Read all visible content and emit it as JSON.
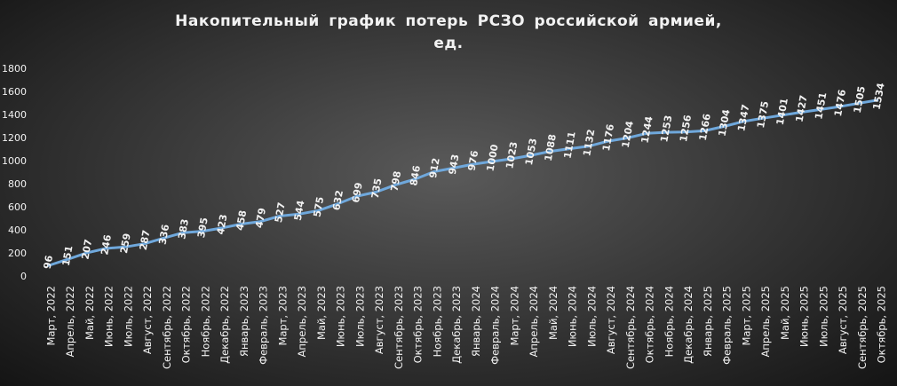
{
  "chart_data": {
    "type": "line",
    "title": "Накопительный график потерь РСЗО российской армией, ед.",
    "categories": [
      "Март, 2022",
      "Апрель, 2022",
      "Май, 2022",
      "Июнь, 2022",
      "Июль, 2022",
      "Август, 2022",
      "Сентябрь, 2022",
      "Октябрь, 2022",
      "Ноябрь, 2022",
      "Декабрь, 2022",
      "Январь, 2023",
      "Февраль, 2023",
      "Март, 2023",
      "Апрель, 2023",
      "Май, 2023",
      "Июнь, 2023",
      "Июль, 2023",
      "Август, 2023",
      "Сентябрь, 2023",
      "Октябрь, 2023",
      "Ноябрь, 2023",
      "Декабрь, 2023",
      "Январь, 2024",
      "Февраль, 2024",
      "Март, 2024",
      "Апрель, 2024",
      "Май, 2024",
      "Июнь, 2024",
      "Июль, 2024",
      "Август, 2024",
      "Сентябрь, 2024",
      "Октябрь, 2024",
      "Ноябрь, 2024",
      "Декабрь, 2024",
      "Январь, 2025",
      "Февраль, 2025",
      "Март, 2025",
      "Апрель, 2025",
      "Май, 2025",
      "Июнь, 2025",
      "Июль, 2025",
      "Август, 2025",
      "Сентябрь, 2025",
      "Октябрь, 2025"
    ],
    "values": [
      96,
      151,
      207,
      246,
      259,
      287,
      336,
      383,
      395,
      423,
      458,
      479,
      527,
      544,
      575,
      632,
      699,
      735,
      798,
      846,
      912,
      943,
      976,
      1000,
      1023,
      1053,
      1088,
      1111,
      1132,
      1176,
      1204,
      1244,
      1253,
      1256,
      1266,
      1304,
      1347,
      1375,
      1401,
      1427,
      1451,
      1476,
      1505,
      1534
    ],
    "color": "#6fa8dc",
    "ylim": [
      0,
      1800
    ],
    "yticks": [
      0,
      200,
      400,
      600,
      800,
      1000,
      1200,
      1400,
      1600,
      1800
    ],
    "grid": false
  }
}
